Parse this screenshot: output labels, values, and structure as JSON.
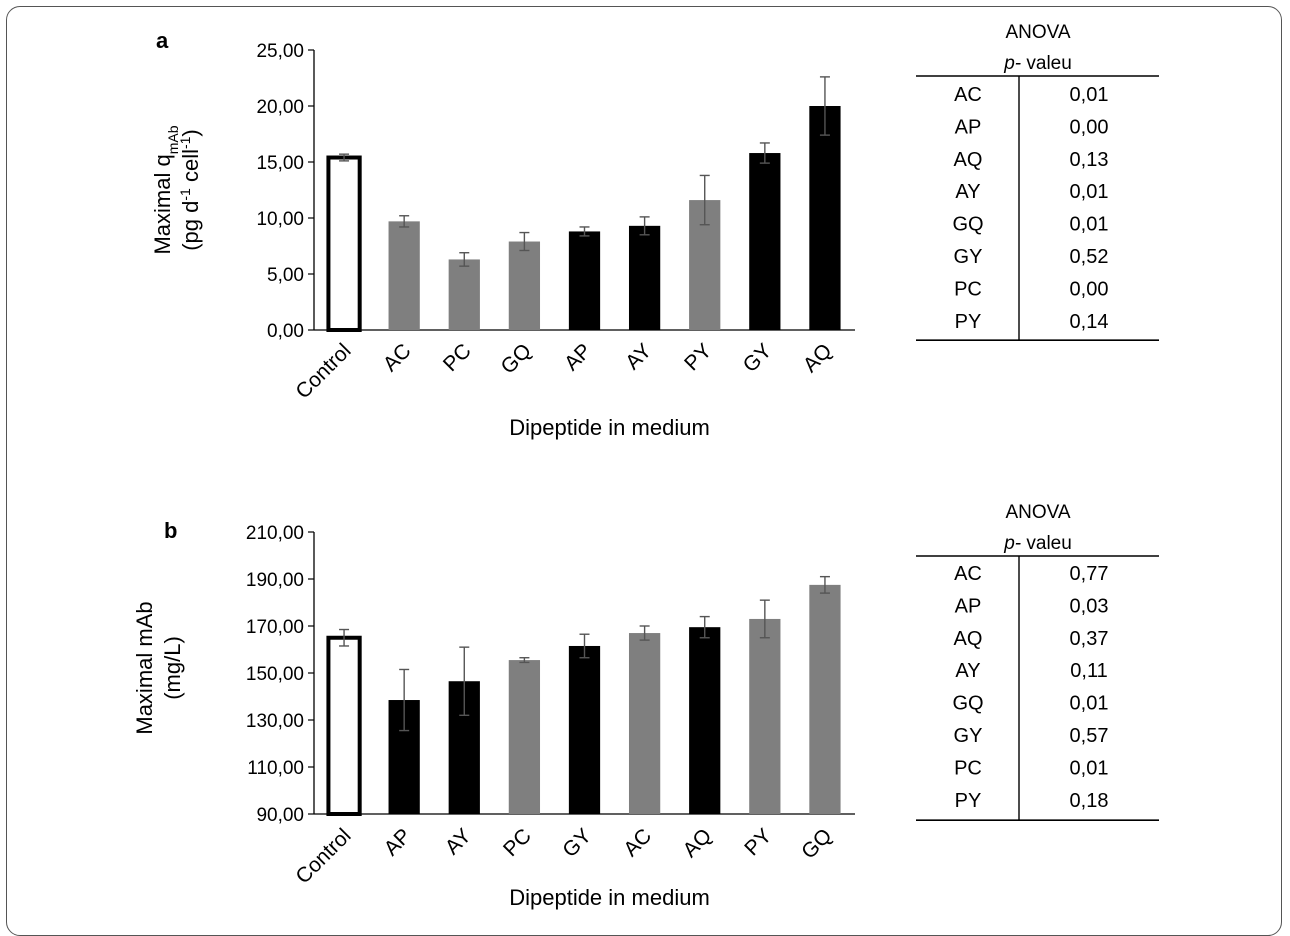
{
  "chart_data": [
    {
      "panel": "a",
      "type": "bar",
      "xlabel": "Dipeptide in medium",
      "ylabel_main": "Maximal q",
      "ylabel_sub": "mAb",
      "ylabel_unit_parts": [
        "(pg d",
        "-1",
        " cell",
        "-1",
        ")"
      ],
      "ylim": [
        0,
        25
      ],
      "yticks": [
        0,
        5,
        10,
        15,
        20,
        25
      ],
      "ytick_labels": [
        "0,00",
        "5,00",
        "10,00",
        "15,00",
        "20,00",
        "25,00"
      ],
      "grid": false,
      "categories": [
        "Control",
        "AC",
        "PC",
        "GQ",
        "AP",
        "AY",
        "PY",
        "GY",
        "AQ"
      ],
      "values": [
        15.4,
        9.7,
        6.3,
        7.9,
        8.8,
        9.3,
        11.6,
        15.8,
        20.0
      ],
      "errors": [
        0.3,
        0.5,
        0.6,
        0.8,
        0.4,
        0.8,
        2.2,
        0.9,
        2.6
      ],
      "bar_colors": [
        "#ffffff",
        "#7f7f7f",
        "#7f7f7f",
        "#7f7f7f",
        "#000000",
        "#000000",
        "#7f7f7f",
        "#000000",
        "#000000"
      ],
      "anova": {
        "header": "ANOVA",
        "subheader_italic": "p-",
        "subheader_rest": " valeu",
        "rows": [
          {
            "label": "AC",
            "value": "0,01"
          },
          {
            "label": "AP",
            "value": "0,00"
          },
          {
            "label": "AQ",
            "value": "0,13"
          },
          {
            "label": "AY",
            "value": "0,01"
          },
          {
            "label": "GQ",
            "value": "0,01"
          },
          {
            "label": "GY",
            "value": "0,52"
          },
          {
            "label": "PC",
            "value": "0,00"
          },
          {
            "label": "PY",
            "value": "0,14"
          }
        ]
      }
    },
    {
      "panel": "b",
      "type": "bar",
      "xlabel": "Dipeptide in medium",
      "ylabel_main": "Maximal mAb",
      "ylabel_sub": "",
      "ylabel_unit_parts": [
        "(mg/L)"
      ],
      "ylim": [
        90,
        210
      ],
      "yticks": [
        90,
        110,
        130,
        150,
        170,
        190,
        210
      ],
      "ytick_labels": [
        "90,00",
        "110,00",
        "130,00",
        "150,00",
        "170,00",
        "190,00",
        "210,00"
      ],
      "grid": false,
      "categories": [
        "Control",
        "AP",
        "AY",
        "PC",
        "GY",
        "AC",
        "AQ",
        "PY",
        "GQ"
      ],
      "values": [
        165,
        138.5,
        146.5,
        155.5,
        161.5,
        167,
        169.5,
        173,
        187.5
      ],
      "errors": [
        3.5,
        13,
        14.5,
        1,
        5,
        3,
        4.5,
        8,
        3.5
      ],
      "bar_colors": [
        "#ffffff",
        "#000000",
        "#000000",
        "#7f7f7f",
        "#000000",
        "#7f7f7f",
        "#000000",
        "#7f7f7f",
        "#7f7f7f"
      ],
      "anova": {
        "header": "ANOVA",
        "subheader_italic": "p-",
        "subheader_rest": " valeu",
        "rows": [
          {
            "label": "AC",
            "value": "0,77"
          },
          {
            "label": "AP",
            "value": "0,03"
          },
          {
            "label": "AQ",
            "value": "0,37"
          },
          {
            "label": "AY",
            "value": "0,11"
          },
          {
            "label": "GQ",
            "value": "0,01"
          },
          {
            "label": "GY",
            "value": "0,57"
          },
          {
            "label": "PC",
            "value": "0,01"
          },
          {
            "label": "PY",
            "value": "0,18"
          }
        ]
      }
    }
  ]
}
